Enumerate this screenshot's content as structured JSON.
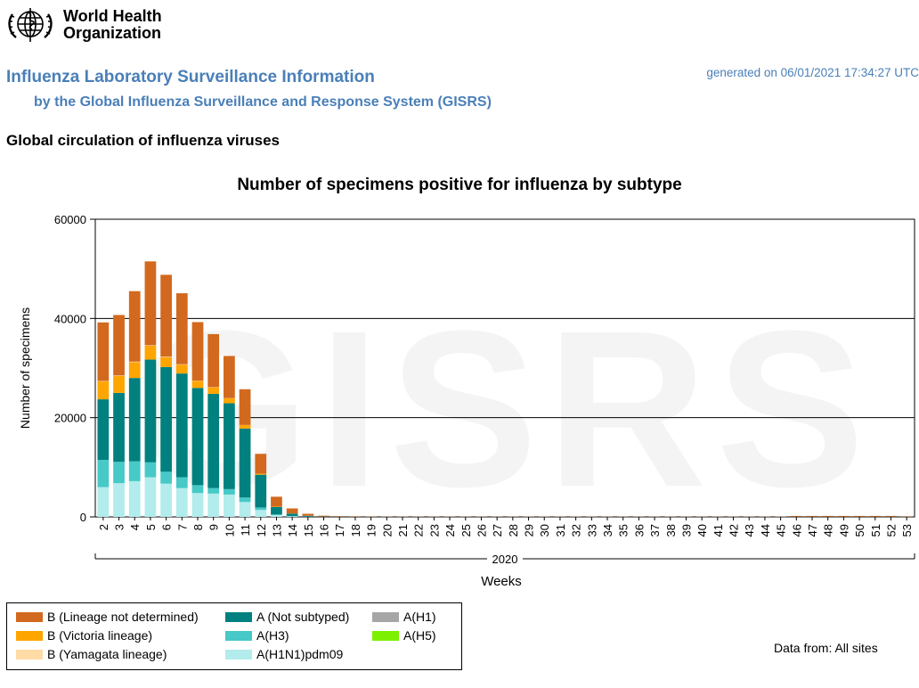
{
  "header": {
    "org_name_line1": "World Health",
    "org_name_line2": "Organization",
    "title": "Influenza Laboratory Surveillance Information",
    "subtitle": "by the Global Influenza Surveillance and Response System (GISRS)",
    "generated": "generated on 06/01/2021 17:34:27 UTC",
    "section_title": "Global circulation of influenza viruses"
  },
  "footer": {
    "data_from": "Data from: All sites"
  },
  "chart_data": {
    "type": "bar",
    "stacked": true,
    "title": "Number of specimens positive for influenza by subtype",
    "xlabel": "Weeks",
    "ylabel": "Number of specimens",
    "year_label": "2020",
    "watermark": "GISRS",
    "ylim": [
      0,
      60000
    ],
    "yticks": [
      0,
      20000,
      40000,
      60000
    ],
    "grid": true,
    "legend_position": "bottom-left",
    "categories": [
      "2",
      "3",
      "4",
      "5",
      "6",
      "7",
      "8",
      "9",
      "10",
      "11",
      "12",
      "13",
      "14",
      "15",
      "16",
      "17",
      "18",
      "19",
      "20",
      "21",
      "22",
      "23",
      "24",
      "25",
      "26",
      "27",
      "28",
      "29",
      "30",
      "31",
      "32",
      "33",
      "34",
      "35",
      "36",
      "37",
      "38",
      "39",
      "40",
      "41",
      "42",
      "43",
      "44",
      "45",
      "46",
      "47",
      "48",
      "49",
      "50",
      "51",
      "52",
      "53"
    ],
    "series": [
      {
        "name": "A(H1N1)pdm09",
        "color": "#b2ecec",
        "values": [
          6000,
          6800,
          7200,
          8000,
          6700,
          5800,
          4800,
          4700,
          4500,
          3000,
          1400,
          350,
          120,
          50,
          20,
          10,
          5,
          5,
          5,
          5,
          5,
          5,
          5,
          5,
          5,
          5,
          5,
          5,
          5,
          5,
          5,
          5,
          5,
          5,
          5,
          5,
          5,
          5,
          5,
          5,
          5,
          5,
          5,
          5,
          5,
          5,
          5,
          5,
          5,
          5,
          5,
          5
        ]
      },
      {
        "name": "A(H1)",
        "color": "#a6a6a6",
        "values": [
          0,
          0,
          0,
          0,
          0,
          0,
          0,
          0,
          0,
          0,
          0,
          0,
          0,
          0,
          0,
          0,
          0,
          0,
          0,
          0,
          0,
          0,
          0,
          0,
          0,
          0,
          0,
          0,
          0,
          0,
          0,
          0,
          0,
          0,
          0,
          0,
          0,
          0,
          0,
          0,
          0,
          0,
          0,
          0,
          0,
          0,
          0,
          0,
          0,
          0,
          0,
          0
        ]
      },
      {
        "name": "A(H3)",
        "color": "#46c9c7",
        "values": [
          5500,
          4300,
          4000,
          3000,
          2400,
          2200,
          1600,
          1100,
          1100,
          900,
          500,
          150,
          60,
          20,
          10,
          5,
          5,
          5,
          5,
          5,
          5,
          5,
          5,
          5,
          5,
          5,
          5,
          5,
          5,
          5,
          5,
          5,
          5,
          5,
          5,
          5,
          5,
          5,
          5,
          5,
          5,
          5,
          5,
          5,
          5,
          5,
          5,
          5,
          5,
          5,
          5,
          5
        ]
      },
      {
        "name": "A(H5)",
        "color": "#7cf000",
        "values": [
          0,
          0,
          0,
          0,
          0,
          0,
          0,
          0,
          0,
          0,
          0,
          0,
          0,
          0,
          0,
          0,
          0,
          0,
          0,
          0,
          0,
          0,
          0,
          0,
          0,
          0,
          0,
          0,
          0,
          0,
          0,
          0,
          0,
          0,
          0,
          0,
          0,
          0,
          0,
          0,
          0,
          0,
          0,
          0,
          0,
          0,
          0,
          0,
          0,
          0,
          0,
          0
        ]
      },
      {
        "name": "A (Not subtyped)",
        "color": "#00807e",
        "values": [
          12200,
          13900,
          16800,
          20700,
          21100,
          20900,
          19600,
          19000,
          17300,
          13900,
          6600,
          1500,
          500,
          150,
          50,
          30,
          20,
          20,
          20,
          20,
          20,
          20,
          20,
          20,
          20,
          20,
          20,
          20,
          20,
          20,
          20,
          20,
          20,
          20,
          20,
          20,
          20,
          20,
          20,
          20,
          20,
          20,
          20,
          20,
          30,
          30,
          30,
          30,
          30,
          30,
          30,
          20
        ]
      },
      {
        "name": "B (Victoria lineage)",
        "color": "#ffa500",
        "values": [
          3600,
          3400,
          3200,
          2800,
          2000,
          1800,
          1400,
          1300,
          1000,
          700,
          200,
          60,
          30,
          10,
          5,
          5,
          5,
          5,
          5,
          5,
          5,
          5,
          5,
          5,
          5,
          5,
          5,
          5,
          5,
          5,
          5,
          5,
          5,
          5,
          5,
          5,
          5,
          5,
          5,
          5,
          5,
          5,
          5,
          5,
          5,
          5,
          5,
          5,
          5,
          5,
          5,
          5
        ]
      },
      {
        "name": "B (Yamagata lineage)",
        "color": "#ffdba6",
        "values": [
          100,
          100,
          100,
          100,
          100,
          80,
          60,
          50,
          40,
          30,
          10,
          5,
          0,
          0,
          0,
          0,
          0,
          0,
          0,
          0,
          0,
          0,
          0,
          0,
          0,
          0,
          0,
          0,
          0,
          0,
          0,
          0,
          0,
          0,
          0,
          0,
          0,
          0,
          0,
          0,
          0,
          0,
          0,
          0,
          0,
          0,
          0,
          0,
          0,
          0,
          0,
          0
        ]
      },
      {
        "name": "B (Lineage not determined)",
        "color": "#d2691e",
        "values": [
          11800,
          12200,
          14200,
          16900,
          16500,
          14300,
          11800,
          10700,
          8500,
          7200,
          4000,
          2000,
          1000,
          400,
          150,
          100,
          80,
          60,
          50,
          50,
          50,
          50,
          50,
          50,
          50,
          50,
          50,
          50,
          50,
          50,
          50,
          50,
          50,
          50,
          50,
          50,
          50,
          50,
          50,
          50,
          50,
          50,
          50,
          50,
          150,
          150,
          150,
          150,
          150,
          150,
          150,
          80
        ]
      }
    ]
  },
  "legend": [
    {
      "label": "B (Lineage not determined)",
      "color": "#d2691e",
      "icon": "swatch-orange-brown"
    },
    {
      "label": "A (Not subtyped)",
      "color": "#00807e",
      "icon": "swatch-teal"
    },
    {
      "label": "A(H1)",
      "color": "#a6a6a6",
      "icon": "swatch-gray"
    },
    {
      "label": "B (Victoria lineage)",
      "color": "#ffa500",
      "icon": "swatch-orange"
    },
    {
      "label": "A(H3)",
      "color": "#46c9c7",
      "icon": "swatch-turquoise"
    },
    {
      "label": "A(H5)",
      "color": "#7cf000",
      "icon": "swatch-green"
    },
    {
      "label": "B (Yamagata lineage)",
      "color": "#ffdba6",
      "icon": "swatch-peach"
    },
    {
      "label": "A(H1N1)pdm09",
      "color": "#b2ecec",
      "icon": "swatch-light-cyan"
    }
  ]
}
